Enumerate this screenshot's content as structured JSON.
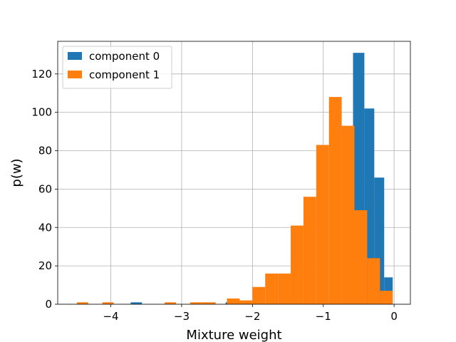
{
  "chart_data": {
    "type": "bar",
    "histogram": true,
    "title": "",
    "xlabel": "Mixture weight",
    "ylabel": "p(w)",
    "xlim": [
      -4.75,
      0.23
    ],
    "ylim": [
      0,
      137
    ],
    "xticks": [
      -4,
      -3,
      -2,
      -1,
      0
    ],
    "xtick_labels": [
      "−4",
      "−3",
      "−2",
      "−1",
      "0"
    ],
    "yticks": [
      0,
      20,
      40,
      60,
      80,
      100,
      120
    ],
    "ytick_labels": [
      "0",
      "20",
      "40",
      "60",
      "80",
      "100",
      "120"
    ],
    "grid": true,
    "legend_position": "upper-left",
    "series": [
      {
        "name": "component 0",
        "color": "#1f77b4",
        "bins": [
          {
            "x0": -3.72,
            "x1": -3.56,
            "value": 1
          },
          {
            "x0": -2.38,
            "x1": -2.22,
            "value": 1
          },
          {
            "x0": -0.58,
            "x1": -0.42,
            "value": 131
          },
          {
            "x0": -0.42,
            "x1": -0.28,
            "value": 102
          },
          {
            "x0": -0.28,
            "x1": -0.14,
            "value": 66
          },
          {
            "x0": -0.14,
            "x1": -0.02,
            "value": 14
          }
        ]
      },
      {
        "name": "component 1",
        "color": "#ff7f0e",
        "bins": [
          {
            "x0": -4.48,
            "x1": -4.32,
            "value": 1
          },
          {
            "x0": -4.12,
            "x1": -3.96,
            "value": 1
          },
          {
            "x0": -3.24,
            "x1": -3.08,
            "value": 1
          },
          {
            "x0": -2.88,
            "x1": -2.72,
            "value": 1
          },
          {
            "x0": -2.72,
            "x1": -2.52,
            "value": 1
          },
          {
            "x0": -2.36,
            "x1": -2.18,
            "value": 3
          },
          {
            "x0": -2.18,
            "x1": -2.0,
            "value": 2
          },
          {
            "x0": -2.0,
            "x1": -1.82,
            "value": 9
          },
          {
            "x0": -1.82,
            "x1": -1.64,
            "value": 16
          },
          {
            "x0": -1.64,
            "x1": -1.46,
            "value": 16
          },
          {
            "x0": -1.46,
            "x1": -1.28,
            "value": 41
          },
          {
            "x0": -1.28,
            "x1": -1.1,
            "value": 56
          },
          {
            "x0": -1.1,
            "x1": -0.92,
            "value": 83
          },
          {
            "x0": -0.92,
            "x1": -0.74,
            "value": 108
          },
          {
            "x0": -0.74,
            "x1": -0.56,
            "value": 93
          },
          {
            "x0": -0.56,
            "x1": -0.38,
            "value": 49
          },
          {
            "x0": -0.38,
            "x1": -0.2,
            "value": 24
          },
          {
            "x0": -0.2,
            "x1": -0.02,
            "value": 7
          }
        ]
      }
    ]
  }
}
